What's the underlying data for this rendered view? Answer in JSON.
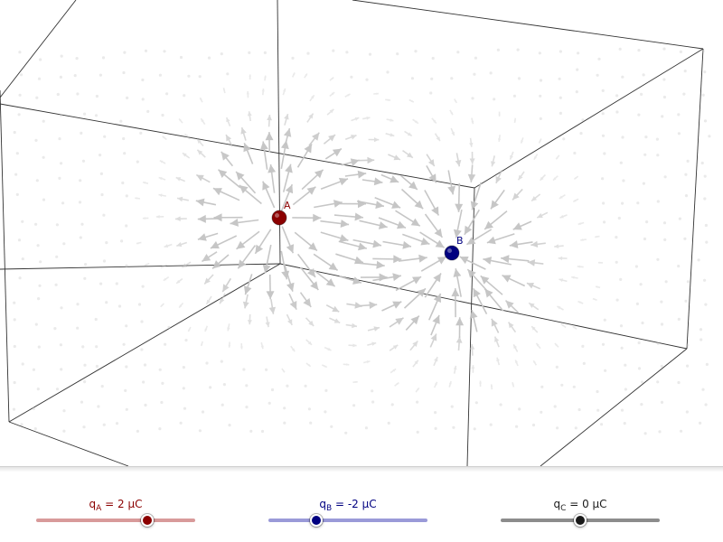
{
  "charges": [
    {
      "id": "A",
      "label": "A",
      "symbol": "q",
      "sub": "A",
      "value_text": "= 2 μC",
      "value": 2,
      "unit": "μC",
      "color": "#8b0000",
      "track_color": "#d89a9a"
    },
    {
      "id": "B",
      "label": "B",
      "symbol": "q",
      "sub": "B",
      "value_text": "= -2 μC",
      "value": -2,
      "unit": "μC",
      "color": "#000080",
      "track_color": "#9a9ad8"
    },
    {
      "id": "C",
      "label": "",
      "symbol": "q",
      "sub": "C",
      "value_text": "= 0 μC",
      "value": 0,
      "unit": "μC",
      "color": "#1a1a1a",
      "track_color": "#8c8c8c"
    }
  ],
  "slider_range": {
    "min": -5,
    "max": 5
  },
  "field_arrow_color": "#c4c4c4",
  "box_edge_color": "#333333"
}
